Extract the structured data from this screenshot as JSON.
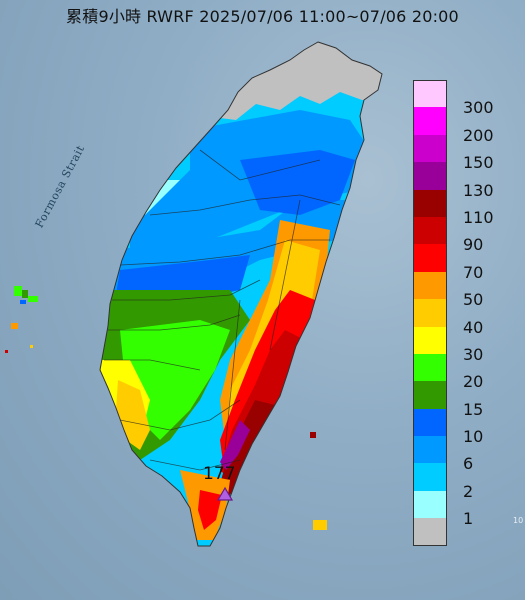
{
  "title": "累積9小時 RWRF 2025/07/06 11:00~07/06 20:00",
  "sea_label": "Formosa Strait",
  "max_marker": {
    "label": "177",
    "color": "#9b30d0",
    "shape": "triangle"
  },
  "legend": {
    "bins": [
      {
        "label": "300",
        "color": "#ffc8ff"
      },
      {
        "label": "200",
        "color": "#ff00ff"
      },
      {
        "label": "150",
        "color": "#cc00cc"
      },
      {
        "label": "130",
        "color": "#990099"
      },
      {
        "label": "110",
        "color": "#990000"
      },
      {
        "label": "90",
        "color": "#cc0000"
      },
      {
        "label": "70",
        "color": "#ff0000"
      },
      {
        "label": "50",
        "color": "#ff9900"
      },
      {
        "label": "40",
        "color": "#ffcc00"
      },
      {
        "label": "30",
        "color": "#ffff00"
      },
      {
        "label": "20",
        "color": "#33ff00"
      },
      {
        "label": "15",
        "color": "#339900"
      },
      {
        "label": "10",
        "color": "#0066ff"
      },
      {
        "label": "6",
        "color": "#0099ff"
      },
      {
        "label": "2",
        "color": "#00ccff"
      },
      {
        "label": "1",
        "color": "#99ffff"
      },
      {
        "label": "",
        "color": "#c0c0c0"
      }
    ]
  },
  "corner_mark": "10"
}
